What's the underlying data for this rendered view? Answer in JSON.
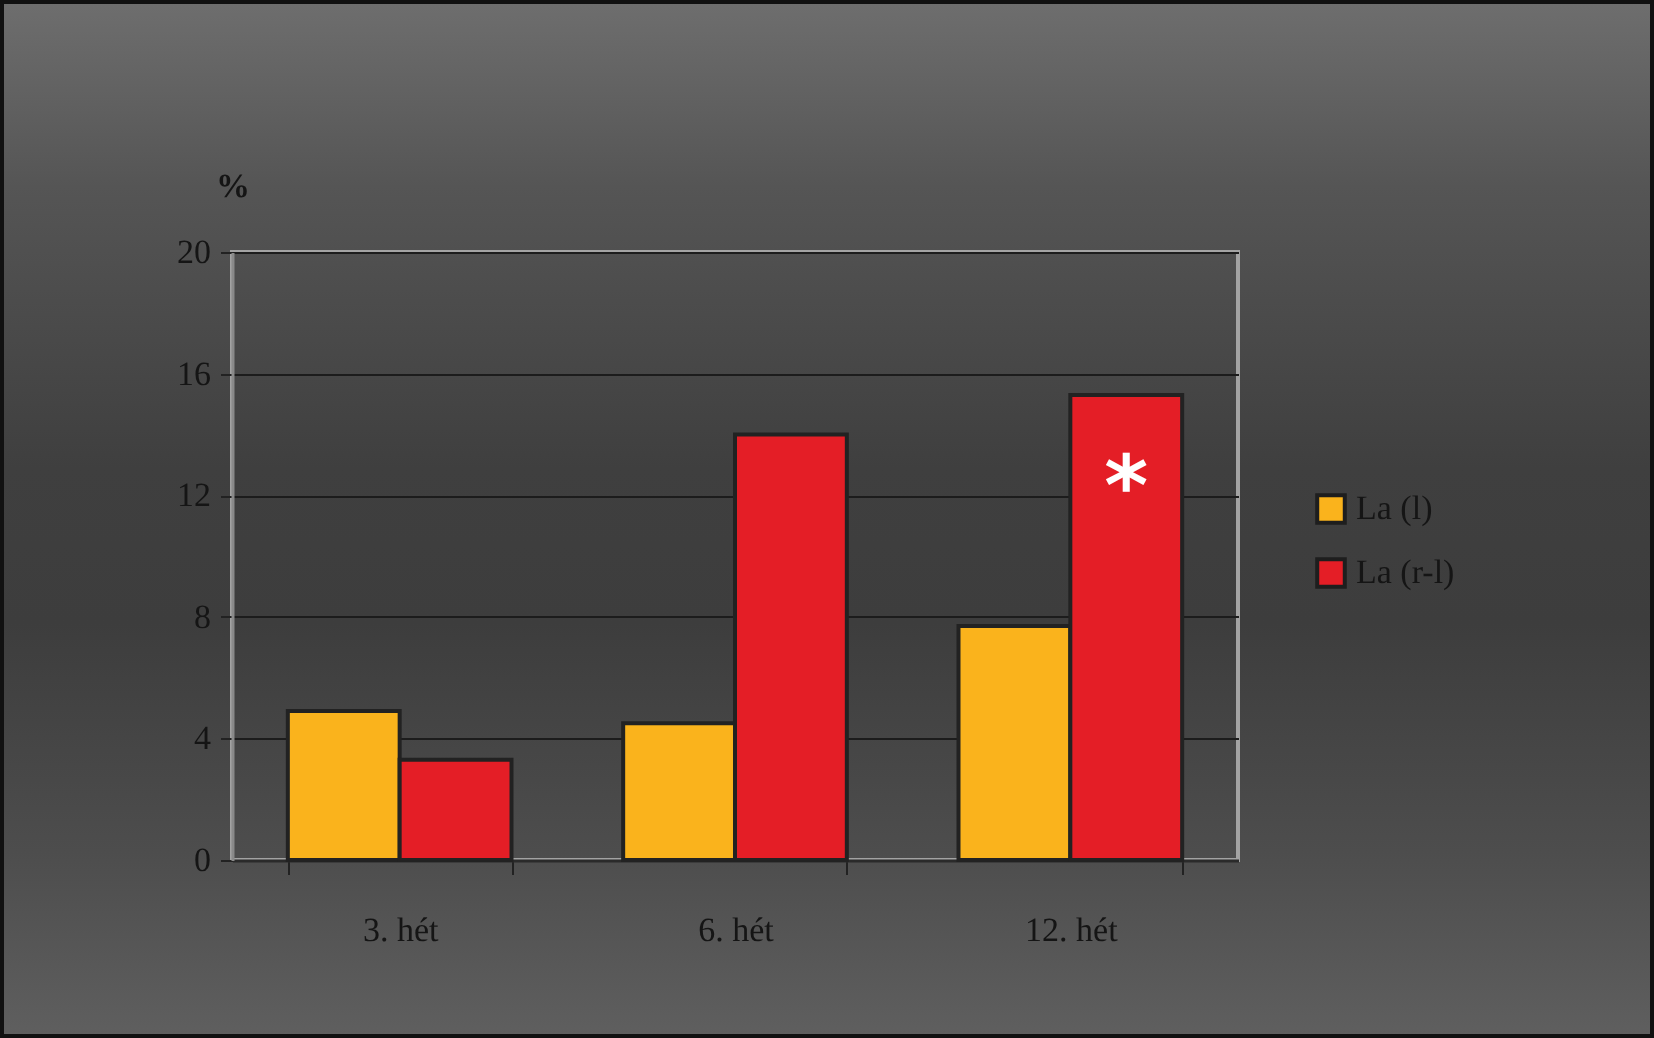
{
  "chart_data": {
    "type": "bar",
    "categories": [
      "3. hét",
      "6. hét",
      "12. hét"
    ],
    "series": [
      {
        "name": "La (l)",
        "color": "#fab31c",
        "values": [
          4.9,
          4.5,
          7.7
        ]
      },
      {
        "name": "La (r-l)",
        "color": "#e41e26",
        "values": [
          3.3,
          14.0,
          15.3
        ]
      }
    ],
    "ylabel": "%",
    "ylim": [
      0,
      20
    ],
    "yticks": [
      0,
      4,
      8,
      12,
      16,
      20
    ],
    "grid": "y",
    "legend": "right",
    "annotations": [
      {
        "text": "*",
        "x": "12. hét",
        "y": 12.8
      }
    ]
  }
}
